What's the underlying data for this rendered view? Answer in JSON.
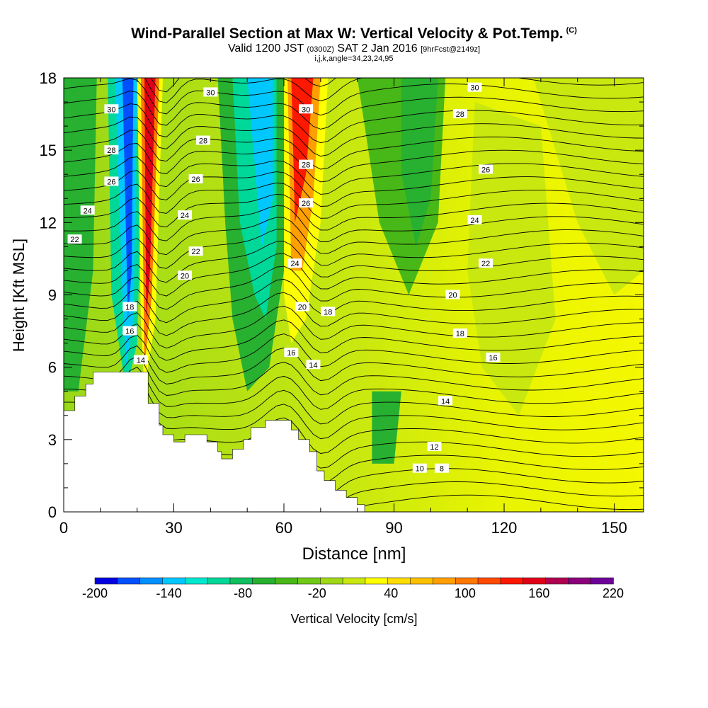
{
  "chart_data": {
    "type": "heatmap",
    "title": "Wind-Parallel Section at Max W: Vertical Velocity & Pot.Temp.",
    "title_suffix": "(C)",
    "subtitle_main": "Valid 1200 JST",
    "subtitle_zulu": "(0300Z)",
    "subtitle_date": "SAT 2 Jan 2016",
    "subtitle_fcst": "[9hrFcst@2149z]",
    "subtitle2": "i,j,k,angle=34,23,24,95",
    "xlabel": "Distance [nm]",
    "ylabel": "Height [Kft MSL]",
    "xlim": [
      0,
      158
    ],
    "ylim": [
      0,
      18
    ],
    "x_ticks": [
      "0",
      "30",
      "60",
      "90",
      "120",
      "150"
    ],
    "y_ticks": [
      "0",
      "3",
      "6",
      "9",
      "12",
      "15",
      "18"
    ],
    "colorbar": {
      "label": "Vertical Velocity [cm/s]",
      "range": [
        -200,
        220
      ],
      "step": 20,
      "tick_labels": [
        "-200",
        "-140",
        "-80",
        "-20",
        "40",
        "100",
        "160",
        "220"
      ],
      "colors": [
        "#0000e0",
        "#0050ff",
        "#0090ff",
        "#00c8ff",
        "#00e8d0",
        "#00d89a",
        "#10c060",
        "#28b030",
        "#48b818",
        "#70c818",
        "#a0d818",
        "#c8e810",
        "#ffff00",
        "#ffdd00",
        "#ffc000",
        "#ffa000",
        "#ff7800",
        "#ff4a00",
        "#ff1800",
        "#e00018",
        "#b00050",
        "#8c007c",
        "#6e009a"
      ]
    },
    "theta_contour_labels": [
      "30",
      "28",
      "26",
      "24",
      "22",
      "20",
      "18",
      "16",
      "14",
      "12",
      "10",
      "8"
    ],
    "contour_labels": [
      {
        "v": "30",
        "x": 13,
        "y": 16.7
      },
      {
        "v": "28",
        "x": 13,
        "y": 15.0
      },
      {
        "v": "26",
        "x": 13,
        "y": 13.7
      },
      {
        "v": "24",
        "x": 6.5,
        "y": 12.5
      },
      {
        "v": "22",
        "x": 3,
        "y": 11.3
      },
      {
        "v": "18",
        "x": 18,
        "y": 8.5
      },
      {
        "v": "16",
        "x": 18,
        "y": 7.5
      },
      {
        "v": "14",
        "x": 21,
        "y": 6.3
      },
      {
        "v": "30",
        "x": 40,
        "y": 17.4
      },
      {
        "v": "28",
        "x": 38,
        "y": 15.4
      },
      {
        "v": "26",
        "x": 36,
        "y": 13.8
      },
      {
        "v": "24",
        "x": 33,
        "y": 12.3
      },
      {
        "v": "22",
        "x": 36,
        "y": 10.8
      },
      {
        "v": "20",
        "x": 33,
        "y": 9.8
      },
      {
        "v": "30",
        "x": 66,
        "y": 16.7
      },
      {
        "v": "28",
        "x": 66,
        "y": 14.4
      },
      {
        "v": "26",
        "x": 66,
        "y": 12.8
      },
      {
        "v": "24",
        "x": 63,
        "y": 10.3
      },
      {
        "v": "20",
        "x": 65,
        "y": 8.5
      },
      {
        "v": "18",
        "x": 72,
        "y": 8.3
      },
      {
        "v": "16",
        "x": 62,
        "y": 6.6
      },
      {
        "v": "14",
        "x": 68,
        "y": 6.1
      },
      {
        "v": "30",
        "x": 112,
        "y": 17.6
      },
      {
        "v": "28",
        "x": 108,
        "y": 16.5
      },
      {
        "v": "26",
        "x": 115,
        "y": 14.2
      },
      {
        "v": "24",
        "x": 112,
        "y": 12.1
      },
      {
        "v": "22",
        "x": 115,
        "y": 10.3
      },
      {
        "v": "20",
        "x": 106,
        "y": 9.0
      },
      {
        "v": "18",
        "x": 108,
        "y": 7.4
      },
      {
        "v": "16",
        "x": 117,
        "y": 6.4
      },
      {
        "v": "14",
        "x": 104,
        "y": 4.6
      },
      {
        "v": "12",
        "x": 101,
        "y": 2.7
      },
      {
        "v": "10",
        "x": 97,
        "y": 1.8
      },
      {
        "v": "8",
        "x": 103,
        "y": 1.8
      }
    ]
  }
}
